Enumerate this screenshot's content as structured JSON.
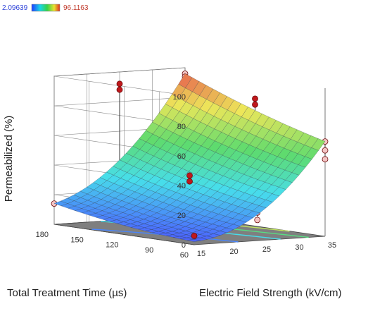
{
  "chart_data": {
    "type": "surface",
    "title": "",
    "zlabel": "Permeabilized (%)",
    "xlabel": "Electric Field Strength (kV/cm)",
    "ylabel": "Total Treatment Time (µs)",
    "x_ticks": [
      "15",
      "20",
      "25",
      "30",
      "35"
    ],
    "y_ticks": [
      "60",
      "90",
      "120",
      "150",
      "180"
    ],
    "z_ticks": [
      "0",
      "20",
      "40",
      "60",
      "80",
      "100"
    ],
    "xlim": [
      15,
      35
    ],
    "ylim": [
      60,
      180
    ],
    "zlim": [
      0,
      100
    ],
    "legend": {
      "min_label": "2.09639",
      "max_label": "96.1163",
      "min_value": 2.09639,
      "max_value": 96.1163
    },
    "surface": {
      "x": [
        15,
        17.5,
        20,
        22.5,
        25,
        27.5,
        30,
        32.5,
        35
      ],
      "y": [
        60,
        75,
        90,
        105,
        120,
        135,
        150,
        165,
        180
      ],
      "model": "quadratic response surface (approximated)",
      "values_at_corners": {
        "x15_y60": 2.1,
        "x35_y60": 65,
        "x15_y180": 15,
        "x35_y180": 96
      }
    },
    "contours_on_floor": [
      10,
      30,
      50,
      70
    ],
    "design_points": [
      {
        "x": 15,
        "y": 60,
        "z": 6
      },
      {
        "x": 15,
        "y": 180,
        "z": 14
      },
      {
        "x": 25,
        "y": 120,
        "z": 33
      },
      {
        "x": 25,
        "y": 120,
        "z": 37
      },
      {
        "x": 25,
        "y": 120,
        "z": 15
      },
      {
        "x": 35,
        "y": 60,
        "z": 58
      },
      {
        "x": 35,
        "y": 60,
        "z": 52
      },
      {
        "x": 35,
        "y": 60,
        "z": 64
      },
      {
        "x": 35,
        "y": 180,
        "z": 96
      },
      {
        "x": 35,
        "y": 180,
        "z": 94
      },
      {
        "x": 35,
        "y": 120,
        "z": 82
      },
      {
        "x": 35,
        "y": 120,
        "z": 86
      },
      {
        "x": 30,
        "y": 90,
        "z": 14
      },
      {
        "x": 30,
        "y": 90,
        "z": 9
      },
      {
        "x": 20,
        "y": 150,
        "z": 12
      },
      {
        "x": 25,
        "y": 180,
        "z": 88
      },
      {
        "x": 25,
        "y": 180,
        "z": 92
      }
    ]
  }
}
